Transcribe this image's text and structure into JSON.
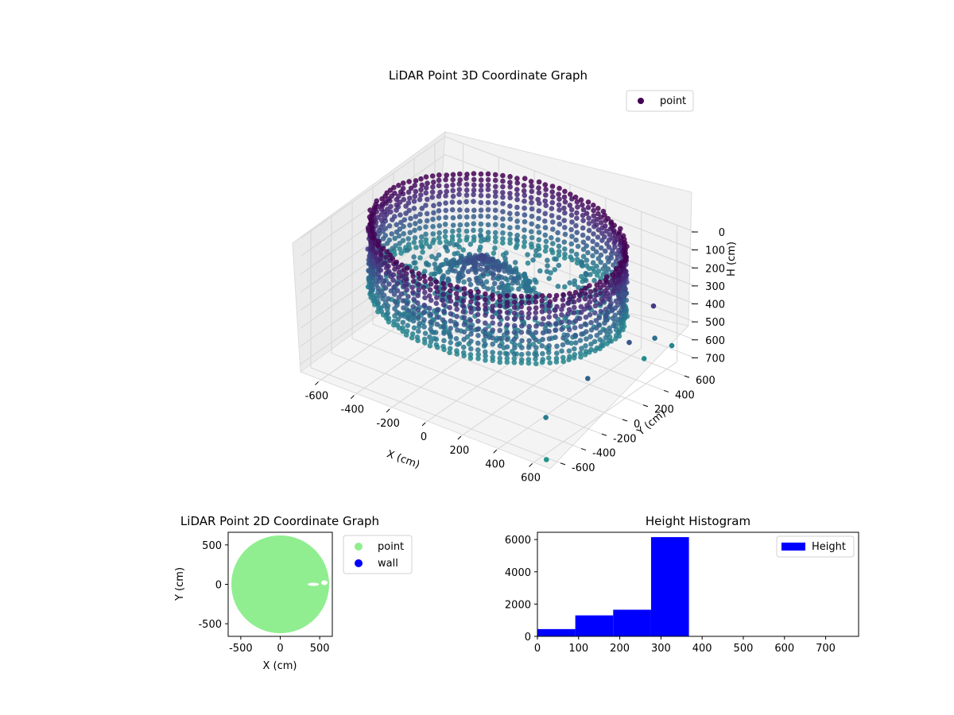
{
  "chart_data": [
    {
      "type": "scatter",
      "projection": "3d",
      "title": "LiDAR Point 3D Coordinate Graph",
      "xlabel": "X (cm)",
      "ylabel": "Y (cm)",
      "zlabel": "H (cm)",
      "xlim": [
        -700,
        700
      ],
      "ylim": [
        -700,
        700
      ],
      "zlim": [
        0,
        760
      ],
      "z_inverted": true,
      "xticks": [
        -600,
        -400,
        -200,
        0,
        200,
        400,
        600
      ],
      "yticks": [
        -600,
        -400,
        -200,
        0,
        200,
        400,
        600
      ],
      "zticks": [
        0,
        100,
        200,
        300,
        400,
        500,
        600,
        700
      ],
      "grid": true,
      "colormap": "viridis",
      "legend": {
        "placement": "upper-right",
        "entries": [
          {
            "name": "point",
            "color": "#440154"
          }
        ]
      },
      "series": [
        {
          "name": "point",
          "shape": "cylindrical-wall",
          "center": [
            0,
            0
          ],
          "radius_cm": 620,
          "height_range": [
            0,
            370
          ]
        },
        {
          "name": "point",
          "shape": "floor-mound",
          "center": [
            -100,
            20
          ],
          "height_range": [
            150,
            320
          ]
        },
        {
          "name": "point",
          "shape": "outliers",
          "points": [
            [
              650,
              -250,
              450
            ],
            [
              680,
              100,
              380
            ],
            [
              700,
              300,
              250
            ],
            [
              620,
              450,
              520
            ],
            [
              560,
              -500,
              600
            ],
            [
              520,
              520,
              700
            ],
            [
              650,
              -650,
              740
            ],
            [
              600,
              650,
              650
            ]
          ]
        }
      ]
    },
    {
      "type": "scatter",
      "title": "LiDAR Point 2D Coordinate Graph",
      "xlabel": "X (cm)",
      "ylabel": "Y (cm)",
      "xlim": [
        -660,
        660
      ],
      "ylim": [
        -660,
        660
      ],
      "xticks": [
        -500,
        0,
        500
      ],
      "yticks": [
        -500,
        0,
        500
      ],
      "legend": {
        "placement": "outside-right",
        "entries": [
          {
            "name": "point",
            "color": "#90ee90"
          },
          {
            "name": "wall",
            "color": "#0000ff"
          }
        ]
      },
      "series": [
        {
          "name": "point",
          "color": "#90ee90",
          "shape": "filled-disc",
          "center": [
            0,
            0
          ],
          "radius_cm": 620
        },
        {
          "name": "wall",
          "color": "#0000ff",
          "points": []
        }
      ]
    },
    {
      "type": "bar",
      "subtype": "histogram",
      "title": "Height Histogram",
      "xlabel": "",
      "ylabel": "",
      "xlim": [
        0,
        780
      ],
      "ylim": [
        0,
        6450
      ],
      "xticks": [
        0,
        100,
        200,
        300,
        400,
        500,
        600,
        700
      ],
      "yticks": [
        0,
        2000,
        4000,
        6000
      ],
      "legend": {
        "placement": "upper-right",
        "entries": [
          {
            "name": "Height",
            "color": "#0000ff"
          }
        ]
      },
      "series": [
        {
          "name": "Height",
          "color": "#0000ff",
          "bins": [
            [
              0,
              92
            ],
            [
              92,
              184
            ],
            [
              184,
              276
            ],
            [
              276,
              368
            ],
            [
              368,
              460
            ],
            [
              460,
              552
            ],
            [
              552,
              644
            ],
            [
              644,
              736
            ],
            [
              736,
              780
            ]
          ],
          "values": [
            450,
            1300,
            1650,
            6150,
            5,
            3,
            3,
            2,
            2
          ]
        }
      ]
    }
  ]
}
